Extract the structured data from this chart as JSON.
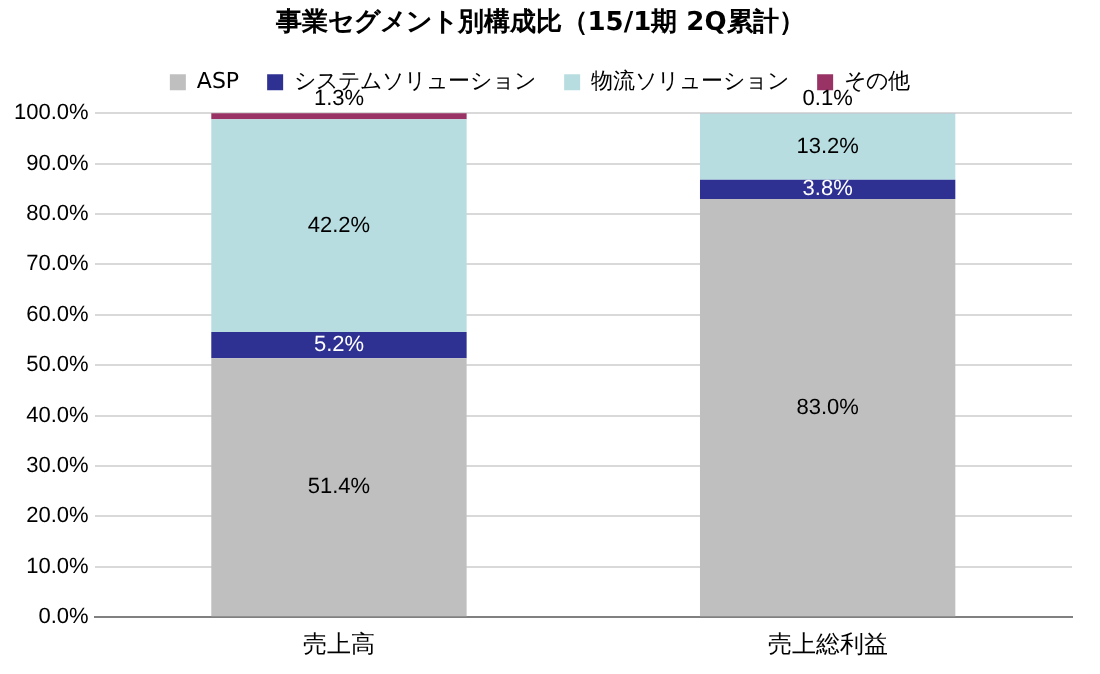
{
  "chart_data": {
    "type": "bar",
    "stacked": true,
    "title": "事業セグメント別構成比（15/1期 2Q累計）",
    "categories": [
      "売上高",
      "売上総利益"
    ],
    "series": [
      {
        "name": "ASP",
        "color": "#bfbfbf",
        "values": [
          51.4,
          83.0
        ],
        "value_labels": [
          "51.4%",
          "83.0%"
        ]
      },
      {
        "name": "システムソリューション",
        "color": "#2e3192",
        "values": [
          5.2,
          3.8
        ],
        "value_labels": [
          "5.2%",
          "3.8%"
        ]
      },
      {
        "name": "物流ソリューション",
        "color": "#b7dde1",
        "values": [
          42.2,
          13.2
        ],
        "value_labels": [
          "42.2%",
          "13.2%"
        ]
      },
      {
        "name": "その他",
        "color": "#993366",
        "values": [
          1.3,
          0.1
        ],
        "value_labels": [
          "1.3%",
          "0.1%"
        ]
      }
    ],
    "ylim": [
      0,
      100
    ],
    "yticks": [
      {
        "value": 0,
        "label": "0.0%"
      },
      {
        "value": 10,
        "label": "10.0%"
      },
      {
        "value": 20,
        "label": "20.0%"
      },
      {
        "value": 30,
        "label": "30.0%"
      },
      {
        "value": 40,
        "label": "40.0%"
      },
      {
        "value": 50,
        "label": "50.0%"
      },
      {
        "value": 60,
        "label": "60.0%"
      },
      {
        "value": 70,
        "label": "70.0%"
      },
      {
        "value": 80,
        "label": "80.0%"
      },
      {
        "value": 90,
        "label": "90.0%"
      },
      {
        "value": 100,
        "label": "100.0%"
      }
    ],
    "grid": "y",
    "legend": "top"
  }
}
